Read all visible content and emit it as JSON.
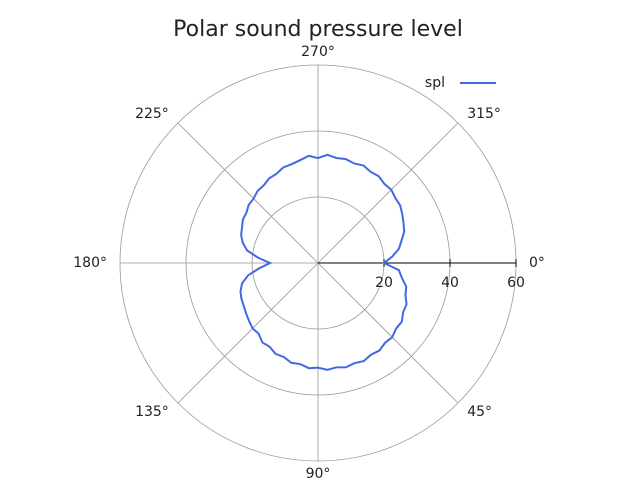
{
  "chart_data": {
    "type": "polar",
    "title": "Polar sound pressure level",
    "theta": [
      0,
      5,
      10,
      15,
      20,
      25,
      30,
      35,
      40,
      45,
      50,
      55,
      60,
      65,
      70,
      75,
      80,
      85,
      90,
      95,
      100,
      105,
      110,
      115,
      120,
      125,
      130,
      135,
      140,
      145,
      150,
      155,
      160,
      165,
      170,
      175,
      180,
      185,
      190,
      195,
      200,
      205,
      210,
      215,
      220,
      225,
      230,
      235,
      240,
      245,
      250,
      255,
      260,
      265,
      270,
      275,
      280,
      285,
      290,
      295,
      300,
      305,
      310,
      315,
      320,
      325,
      330,
      335,
      340,
      345,
      350,
      355
    ],
    "series": [
      {
        "name": "spl",
        "color": "#4169e1",
        "values": [
          20.0,
          24.6,
          25.8,
          27.7,
          28.2,
          29.6,
          29.8,
          31.0,
          30.9,
          31.8,
          31.6,
          32.4,
          32.1,
          32.8,
          32.3,
          32.7,
          32.1,
          32.5,
          31.7,
          32.0,
          31.1,
          31.3,
          30.3,
          30.4,
          29.3,
          29.4,
          28.0,
          28.0,
          27.3,
          26.6,
          26.0,
          25.6,
          25.0,
          23.8,
          21.5,
          17.8,
          14.5,
          18.2,
          21.8,
          23.6,
          24.8,
          25.4,
          26.3,
          26.5,
          27.4,
          27.6,
          28.5,
          28.7,
          29.6,
          29.8,
          30.8,
          31.0,
          31.6,
          32.6,
          31.8,
          32.9,
          32.3,
          32.6,
          32.1,
          32.6,
          31.9,
          32.1,
          31.3,
          31.4,
          30.6,
          30.4,
          29.5,
          28.6,
          27.8,
          26.2,
          24.9,
          22.6
        ]
      }
    ],
    "rlim": [
      0,
      60
    ],
    "rticks": [
      20,
      40,
      60
    ],
    "thetaticks": [
      {
        "value": 0,
        "label": "0°"
      },
      {
        "value": 45,
        "label": "45°"
      },
      {
        "value": 90,
        "label": "90°"
      },
      {
        "value": 135,
        "label": "135°"
      },
      {
        "value": 180,
        "label": "180°"
      },
      {
        "value": 225,
        "label": "225°"
      },
      {
        "value": 270,
        "label": "270°"
      },
      {
        "value": 315,
        "label": "315°"
      }
    ],
    "direction": "clockwise",
    "grid": true,
    "legend": "upper right"
  }
}
